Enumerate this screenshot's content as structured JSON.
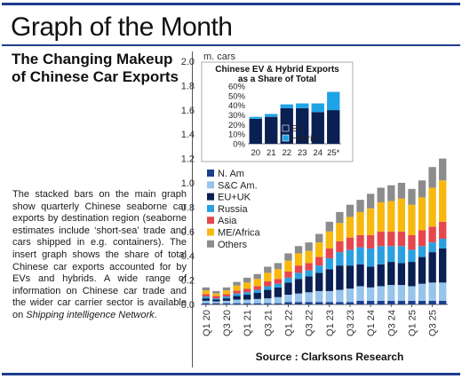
{
  "banner": {
    "title": "Graph of the Month"
  },
  "article": {
    "subtitle": "The Changing Makeup of Chinese Car Exports",
    "body_1": "The stacked bars on the main graph show quarterly Chinese seaborne car exports by destination region (seaborne estimates include ‘short-sea’ trade and cars shipped in e.g. containers). The insert graph shows the share of total Chinese car exports accounted for by EVs and hybrids. A wide range of information on Chinese car trade and the wider car carrier sector is available on ",
    "body_link": "Shipping intelligence Network",
    "body_end": "."
  },
  "source": "Source : Clarksons Research",
  "colors": {
    "N. Am": "#1b3e8f",
    "S&C Am.": "#96c4ea",
    "EU+UK": "#0a1f52",
    "Russia": "#2aa0e0",
    "Asia": "#e5474d",
    "ME/Africa": "#f7b90e",
    "Others": "#8c8c8c",
    "EV": "#0a1f52",
    "Hybrid": "#1ea3e6",
    "axis": "#555555",
    "accent": "#1f3d8f"
  },
  "chart_data": [
    {
      "type": "bar",
      "stacked": true,
      "ylabel": "m. cars",
      "ylim": [
        0,
        2.0
      ],
      "yticks": [
        "0.0",
        "0.2",
        "0.4",
        "0.6",
        "0.8",
        "1.0",
        "1.2",
        "1.4",
        "1.6",
        "1.8",
        "2.0"
      ],
      "categories": [
        "Q1 20",
        "Q2 20",
        "Q3 20",
        "Q4 20",
        "Q1 21",
        "Q2 21",
        "Q3 21",
        "Q4 21",
        "Q1 22",
        "Q2 22",
        "Q3 22",
        "Q4 22",
        "Q1 23",
        "Q2 23",
        "Q3 23",
        "Q4 23",
        "Q1 24",
        "Q2 24",
        "Q3 24",
        "Q4 24",
        "Q1 25",
        "Q2 25",
        "Q3 25",
        "Q4 25"
      ],
      "xtick_labels": [
        "Q1 20",
        "Q3 20",
        "Q1 21",
        "Q3 21",
        "Q1 22",
        "Q3 22",
        "Q1 23",
        "Q3 23",
        "Q1 24",
        "Q3 24",
        "Q1 25",
        "Q3 25"
      ],
      "legend_position": "left-middle",
      "series": [
        {
          "name": "N. Am",
          "values": [
            0.01,
            0.01,
            0.01,
            0.01,
            0.01,
            0.01,
            0.01,
            0.01,
            0.02,
            0.02,
            0.02,
            0.02,
            0.02,
            0.02,
            0.02,
            0.03,
            0.03,
            0.03,
            0.03,
            0.03,
            0.03,
            0.03,
            0.03,
            0.03
          ]
        },
        {
          "name": "S&C Am.",
          "values": [
            0.02,
            0.015,
            0.02,
            0.03,
            0.03,
            0.035,
            0.04,
            0.05,
            0.06,
            0.07,
            0.08,
            0.09,
            0.09,
            0.1,
            0.11,
            0.12,
            0.11,
            0.12,
            0.13,
            0.13,
            0.12,
            0.14,
            0.15,
            0.15
          ]
        },
        {
          "name": "EU+UK",
          "values": [
            0.02,
            0.015,
            0.02,
            0.03,
            0.04,
            0.05,
            0.07,
            0.08,
            0.1,
            0.12,
            0.13,
            0.15,
            0.18,
            0.2,
            0.19,
            0.18,
            0.17,
            0.18,
            0.19,
            0.18,
            0.2,
            0.22,
            0.25,
            0.28
          ]
        },
        {
          "name": "Russia",
          "values": [
            0.015,
            0.01,
            0.015,
            0.02,
            0.02,
            0.025,
            0.03,
            0.03,
            0.04,
            0.05,
            0.05,
            0.06,
            0.09,
            0.11,
            0.13,
            0.14,
            0.15,
            0.15,
            0.13,
            0.14,
            0.1,
            0.09,
            0.08,
            0.08
          ]
        },
        {
          "name": "Asia",
          "values": [
            0.02,
            0.02,
            0.02,
            0.025,
            0.03,
            0.03,
            0.04,
            0.04,
            0.05,
            0.06,
            0.06,
            0.07,
            0.08,
            0.09,
            0.1,
            0.1,
            0.11,
            0.12,
            0.12,
            0.12,
            0.12,
            0.13,
            0.13,
            0.14
          ]
        },
        {
          "name": "ME/Africa",
          "values": [
            0.03,
            0.02,
            0.03,
            0.04,
            0.05,
            0.06,
            0.07,
            0.08,
            0.09,
            0.1,
            0.1,
            0.12,
            0.14,
            0.15,
            0.17,
            0.19,
            0.22,
            0.24,
            0.25,
            0.27,
            0.25,
            0.27,
            0.32,
            0.34
          ]
        },
        {
          "name": "Others",
          "values": [
            0.025,
            0.02,
            0.025,
            0.03,
            0.04,
            0.04,
            0.05,
            0.05,
            0.06,
            0.06,
            0.07,
            0.07,
            0.08,
            0.09,
            0.1,
            0.1,
            0.12,
            0.12,
            0.13,
            0.13,
            0.13,
            0.14,
            0.17,
            0.18
          ]
        }
      ]
    },
    {
      "type": "bar",
      "stacked": true,
      "title": "Chinese EV & Hybrid Exports as a Share of Total",
      "ylim": [
        0,
        60
      ],
      "yticks": [
        "0%",
        "10%",
        "20%",
        "30%",
        "40%",
        "50%",
        "60%"
      ],
      "categories": [
        "20",
        "21",
        "22",
        "23",
        "24",
        "25*"
      ],
      "legend_position": "inside-right",
      "series": [
        {
          "name": "EV",
          "values": [
            26,
            28,
            37,
            37,
            33,
            35
          ]
        },
        {
          "name": "Hybrid",
          "values": [
            2,
            3,
            4,
            5,
            9,
            19
          ]
        }
      ]
    }
  ]
}
